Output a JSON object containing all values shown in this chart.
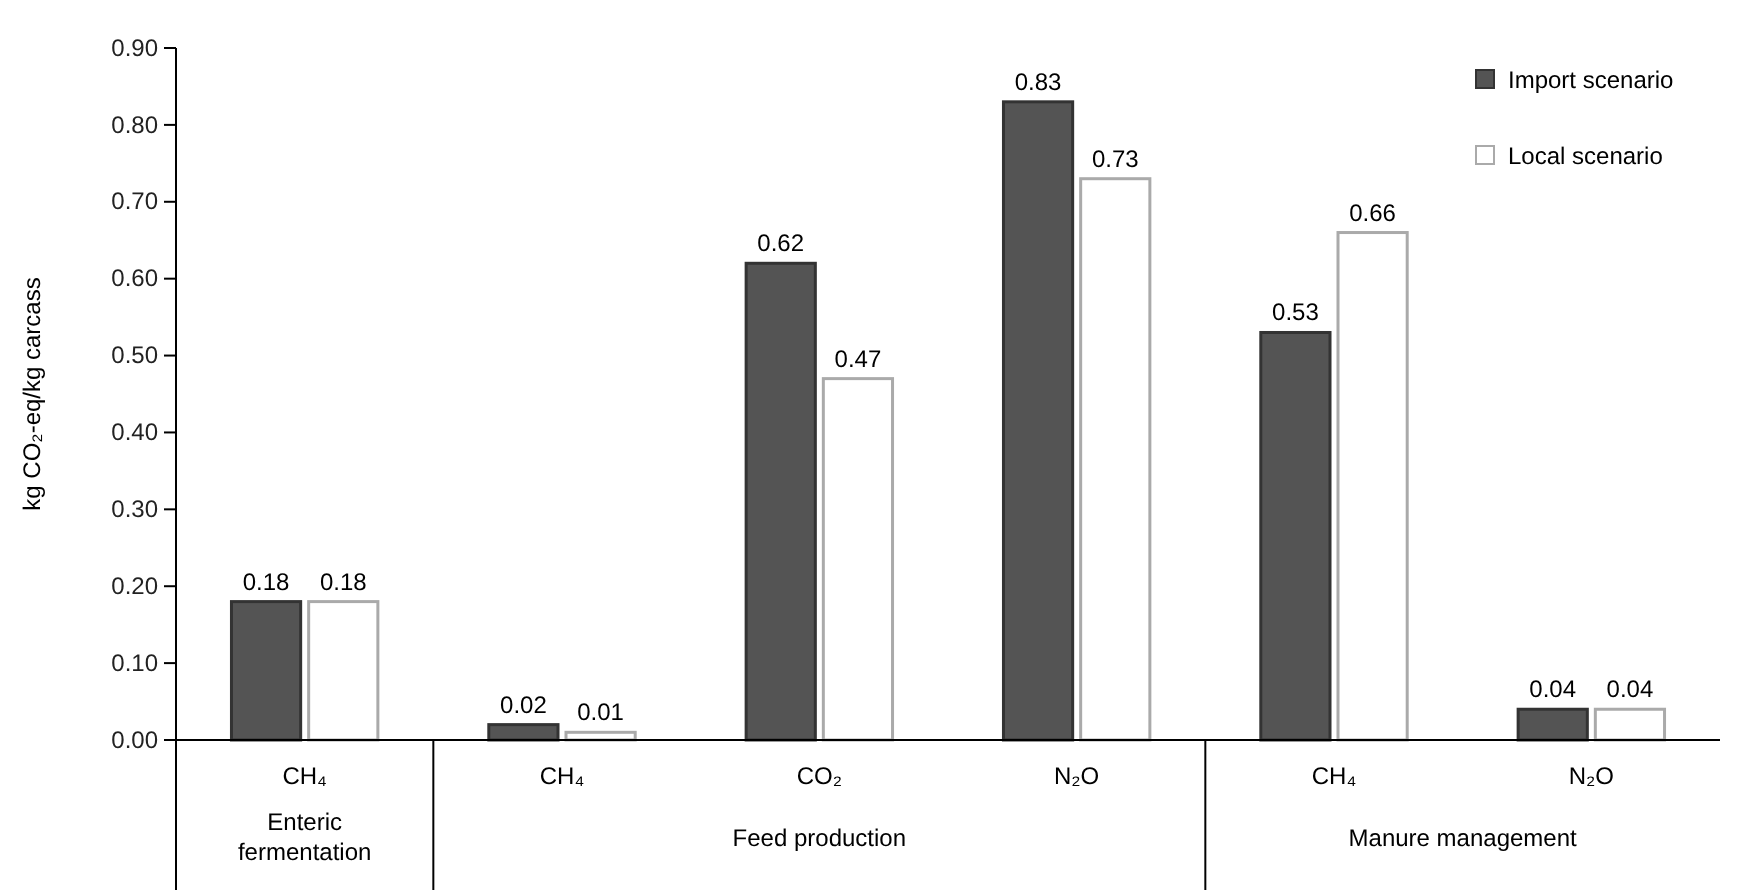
{
  "chart_data": {
    "type": "bar",
    "ylabel": "kg CO₂-eq/kg carcass",
    "categories": [
      "CH₄",
      "CH₄",
      "CO₂",
      "N₂O",
      "CH₄",
      "N₂O"
    ],
    "series": [
      {
        "name": "Import scenario",
        "color": "#545454",
        "values": [
          0.18,
          0.02,
          0.62,
          0.83,
          0.53,
          0.04
        ]
      },
      {
        "name": "Local scenario",
        "color": "#ffffff",
        "values": [
          0.18,
          0.01,
          0.47,
          0.73,
          0.66,
          0.04
        ]
      }
    ],
    "ylim": [
      0,
      0.9
    ],
    "yticks": [
      {
        "value": 0,
        "label": "0.00"
      },
      {
        "value": 0.1,
        "label": "0.10"
      },
      {
        "value": 0.2,
        "label": "0.20"
      },
      {
        "value": 0.3,
        "label": "0.30"
      },
      {
        "value": 0.4,
        "label": "0.40"
      },
      {
        "value": 0.5,
        "label": "0.50"
      },
      {
        "value": 0.6,
        "label": "0.60"
      },
      {
        "value": 0.7,
        "label": "0.70"
      },
      {
        "value": 0.8,
        "label": "0.80"
      },
      {
        "value": 0.9,
        "label": "0.90"
      }
    ],
    "annotations": [
      "Enteric fermentation",
      "Feed production",
      "Manure management"
    ],
    "data_labels": true,
    "legend": "top right",
    "grid": false
  }
}
